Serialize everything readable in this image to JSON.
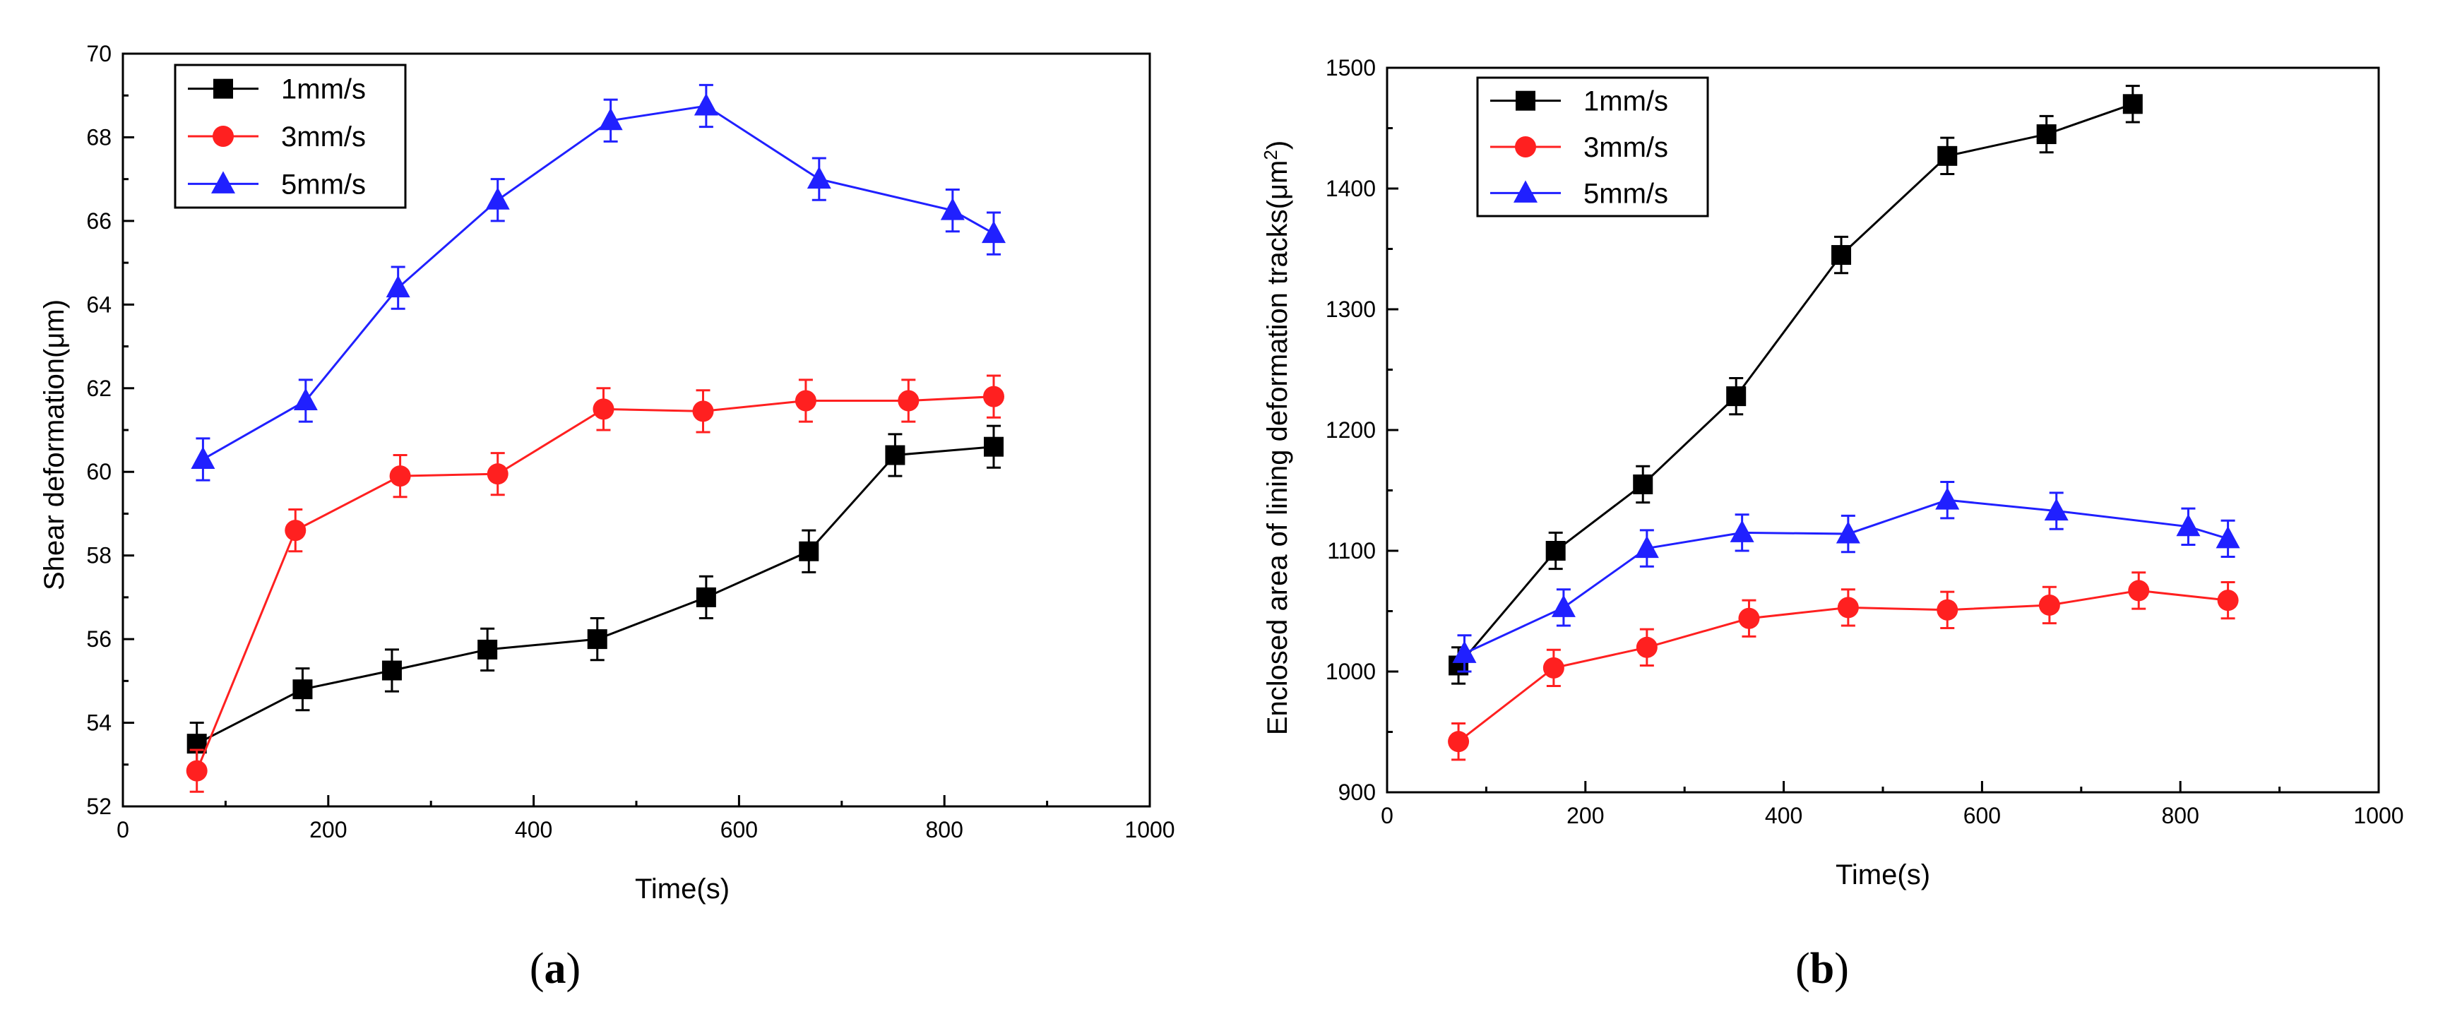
{
  "chart_data": [
    {
      "type": "line",
      "panel_label": "a",
      "xlabel": "Time(s)",
      "ylabel": "Shear deformation(μm)",
      "xlim": [
        0,
        1000
      ],
      "ylim": [
        52,
        70
      ],
      "xticks": [
        0,
        200,
        400,
        600,
        800,
        1000
      ],
      "yticks": [
        52,
        54,
        56,
        58,
        60,
        62,
        64,
        66,
        68,
        70
      ],
      "legend_position": "top-left",
      "series": [
        {
          "name": "1mm/s",
          "color": "#000000",
          "marker": "square",
          "x": [
            72,
            175,
            262,
            355,
            462,
            568,
            668,
            752,
            848
          ],
          "y": [
            53.5,
            54.8,
            55.25,
            55.75,
            56.0,
            57.0,
            58.1,
            60.4,
            60.6
          ],
          "err": [
            0.5,
            0.5,
            0.5,
            0.5,
            0.5,
            0.5,
            0.5,
            0.5,
            0.5
          ]
        },
        {
          "name": "3mm/s",
          "color": "#ff2020",
          "marker": "circle",
          "x": [
            72,
            168,
            270,
            365,
            468,
            565,
            665,
            765,
            848
          ],
          "y": [
            52.85,
            58.6,
            59.9,
            59.95,
            61.5,
            61.45,
            61.7,
            61.7,
            61.8
          ],
          "err": [
            0.5,
            0.5,
            0.5,
            0.5,
            0.5,
            0.5,
            0.5,
            0.5,
            0.5
          ]
        },
        {
          "name": "5mm/s",
          "color": "#2020ff",
          "marker": "triangle",
          "x": [
            78,
            178,
            268,
            365,
            475,
            568,
            678,
            808,
            848
          ],
          "y": [
            60.3,
            61.7,
            64.4,
            66.5,
            68.4,
            68.75,
            67.0,
            66.25,
            65.7
          ],
          "err": [
            0.5,
            0.5,
            0.5,
            0.5,
            0.5,
            0.5,
            0.5,
            0.5,
            0.5
          ]
        }
      ]
    },
    {
      "type": "line",
      "panel_label": "b",
      "xlabel": "Time(s)",
      "ylabel": "Enclosed area of lining deformation tracks(μm",
      "ylabel_superscript": "2",
      "ylabel_suffix": ")",
      "xlim": [
        0,
        1000
      ],
      "ylim": [
        900,
        1500
      ],
      "xticks": [
        0,
        200,
        400,
        600,
        800,
        1000
      ],
      "yticks": [
        900,
        1000,
        1100,
        1200,
        1300,
        1400,
        1500
      ],
      "legend_position": "top-left",
      "series": [
        {
          "name": "1mm/s",
          "color": "#000000",
          "marker": "square",
          "x": [
            72,
            170,
            258,
            352,
            458,
            565,
            665,
            752
          ],
          "y": [
            1005,
            1100,
            1155,
            1228,
            1345,
            1427,
            1445,
            1470
          ],
          "err": [
            15,
            15,
            15,
            15,
            15,
            15,
            15,
            15
          ]
        },
        {
          "name": "3mm/s",
          "color": "#ff2020",
          "marker": "circle",
          "x": [
            72,
            168,
            262,
            365,
            465,
            565,
            668,
            758,
            848
          ],
          "y": [
            942,
            1003,
            1020,
            1044,
            1053,
            1051,
            1055,
            1067,
            1059
          ],
          "err": [
            15,
            15,
            15,
            15,
            15,
            15,
            15,
            15,
            15
          ]
        },
        {
          "name": "5mm/s",
          "color": "#2020ff",
          "marker": "triangle",
          "x": [
            78,
            178,
            262,
            358,
            465,
            565,
            675,
            808,
            848
          ],
          "y": [
            1015,
            1053,
            1102,
            1115,
            1114,
            1142,
            1133,
            1120,
            1110
          ],
          "err": [
            15,
            15,
            15,
            15,
            15,
            15,
            15,
            15,
            15
          ]
        }
      ]
    }
  ]
}
